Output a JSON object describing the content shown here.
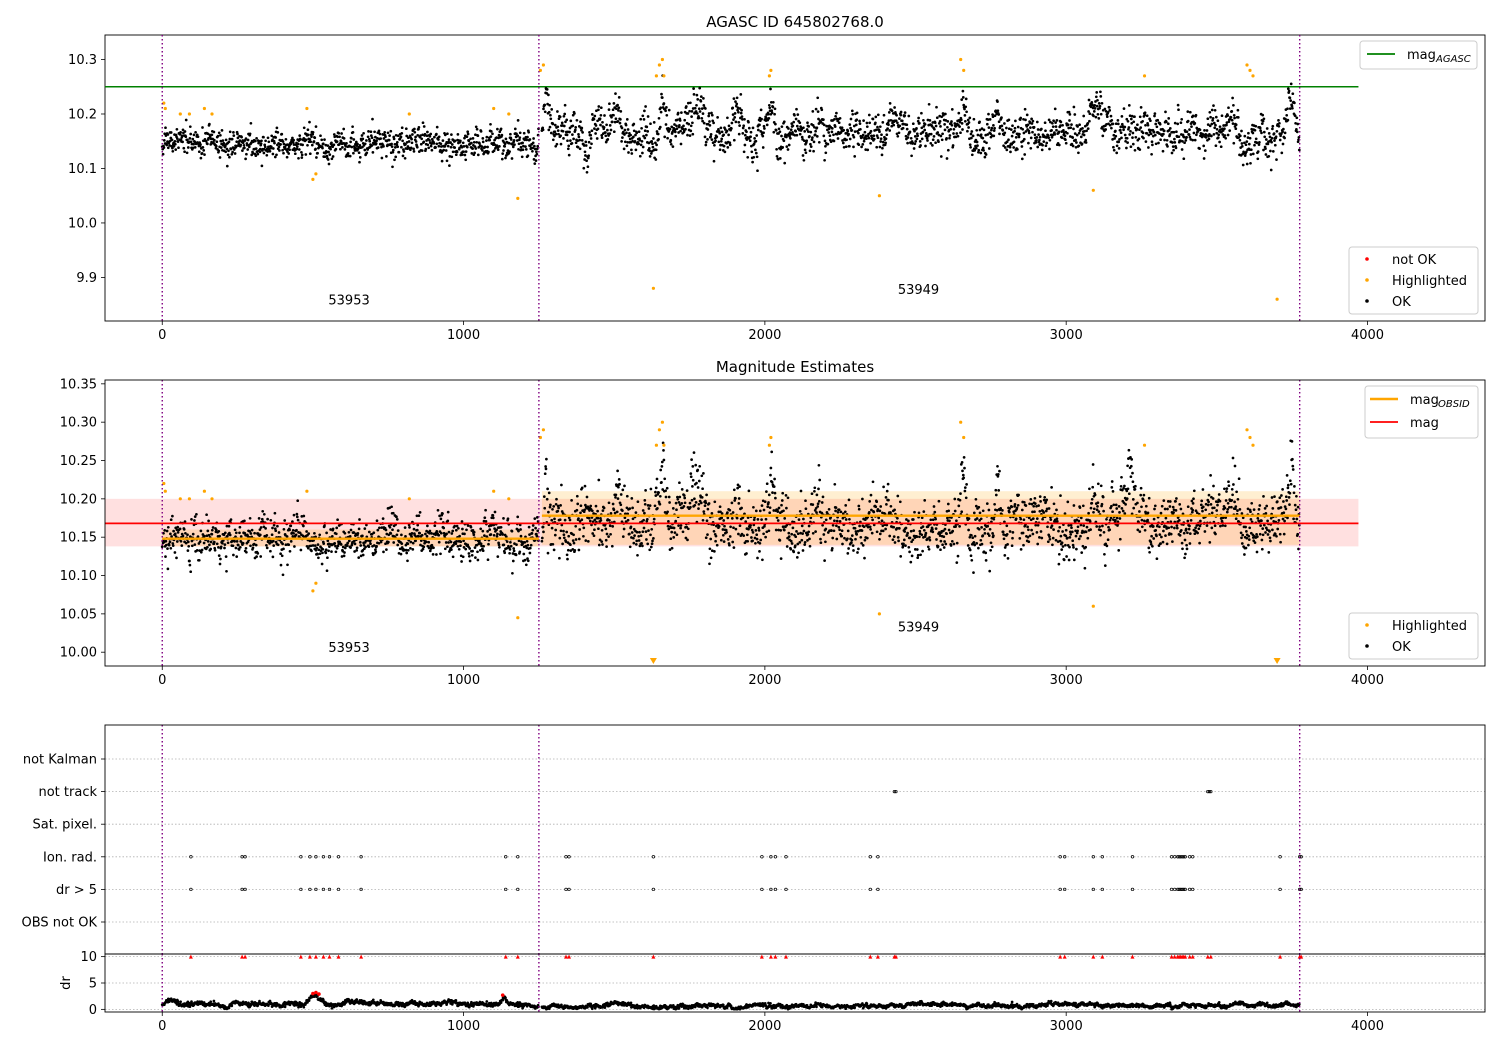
{
  "chart_data": [
    {
      "type": "scatter",
      "title": "AGASC ID 645802768.0",
      "xlim": [
        -190,
        4390
      ],
      "ylim": [
        9.82,
        10.345
      ],
      "x_ticks": [
        0,
        1000,
        2000,
        3000,
        4000
      ],
      "y_ticks": [
        9.9,
        10.0,
        10.1,
        10.2,
        10.3
      ],
      "y_tick_labels": [
        "9.9",
        "10.0",
        "10.1",
        "10.2",
        "10.3"
      ],
      "grid": false,
      "obs_boundaries": [
        0,
        1250,
        3775
      ],
      "obs_labels": [
        {
          "text": "53953",
          "x": 620,
          "y": 9.85
        },
        {
          "text": "53949",
          "x": 2510,
          "y": 9.87
        }
      ],
      "reference_line": {
        "name": "mag_AGASC",
        "y": 10.25,
        "x_range": [
          -190,
          3970
        ],
        "color": "#008000"
      },
      "legend_top": [
        {
          "label": "mag",
          "sub": "AGASC",
          "color": "#008000",
          "kind": "line"
        }
      ],
      "legend_bottom": [
        {
          "label": "not OK",
          "color": "#ff0000",
          "kind": "marker"
        },
        {
          "label": "Highlighted",
          "color": "#ffa500",
          "kind": "marker"
        },
        {
          "label": "OK",
          "color": "#000000",
          "kind": "marker"
        }
      ],
      "segments": [
        {
          "x0": 0,
          "x1": 1250,
          "mean": 10.148,
          "sd": 0.016,
          "drift": 0,
          "excursions": []
        },
        {
          "x0": 1260,
          "x1": 3775,
          "mean": 10.165,
          "sd": 0.022,
          "drift": 0,
          "excursions": [
            [
              1260,
              1290,
              0.09
            ],
            [
              1480,
              1540,
              0.06
            ],
            [
              1640,
              1680,
              0.1
            ],
            [
              1700,
              1830,
              0.055
            ],
            [
              1880,
              1930,
              0.045
            ],
            [
              2000,
              2040,
              0.06
            ],
            [
              2150,
              2200,
              0.045
            ],
            [
              2640,
              2680,
              0.08
            ],
            [
              2750,
              2790,
              0.06
            ],
            [
              3060,
              3130,
              0.05
            ],
            [
              3180,
              3240,
              0.06
            ],
            [
              3520,
              3580,
              0.05
            ],
            [
              3720,
              3775,
              0.08
            ]
          ]
        }
      ],
      "highlighted": [
        [
          5,
          10.22
        ],
        [
          10,
          10.21
        ],
        [
          60,
          10.2
        ],
        [
          90,
          10.2
        ],
        [
          140,
          10.21
        ],
        [
          165,
          10.2
        ],
        [
          480,
          10.21
        ],
        [
          500,
          10.08
        ],
        [
          510,
          10.09
        ],
        [
          820,
          10.2
        ],
        [
          1100,
          10.21
        ],
        [
          1150,
          10.2
        ],
        [
          1180,
          10.045
        ],
        [
          1255,
          10.28
        ],
        [
          1265,
          10.29
        ],
        [
          1630,
          9.88
        ],
        [
          1640,
          10.27
        ],
        [
          1650,
          10.29
        ],
        [
          1660,
          10.3
        ],
        [
          1665,
          10.27
        ],
        [
          2015,
          10.27
        ],
        [
          2020,
          10.28
        ],
        [
          2380,
          10.05
        ],
        [
          2650,
          10.3
        ],
        [
          2660,
          10.28
        ],
        [
          3090,
          10.06
        ],
        [
          3260,
          10.27
        ],
        [
          3600,
          10.29
        ],
        [
          3610,
          10.28
        ],
        [
          3620,
          10.27
        ],
        [
          3700,
          9.86
        ]
      ]
    },
    {
      "type": "scatter",
      "title": "Magnitude Estimates",
      "xlim": [
        -190,
        4390
      ],
      "ylim": [
        9.982,
        10.355
      ],
      "x_ticks": [
        0,
        1000,
        2000,
        3000,
        4000
      ],
      "y_ticks": [
        10.0,
        10.05,
        10.1,
        10.15,
        10.2,
        10.25,
        10.3,
        10.35
      ],
      "y_tick_labels": [
        "10.00",
        "10.05",
        "10.10",
        "10.15",
        "10.20",
        "10.25",
        "10.30",
        "10.35"
      ],
      "grid": false,
      "obs_boundaries": [
        0,
        1250,
        3775
      ],
      "obs_labels": [
        {
          "text": "53953",
          "x": 620,
          "y": 10.0
        },
        {
          "text": "53949",
          "x": 2510,
          "y": 10.027
        }
      ],
      "mag_line": {
        "name": "mag",
        "y": 10.168,
        "band": [
          10.138,
          10.2
        ],
        "x_range": [
          -190,
          3970
        ],
        "color": "#ff0000"
      },
      "mag_obsid": [
        {
          "x0": 0,
          "x1": 1250,
          "y": 10.148,
          "band": [
            10.138,
            10.16
          ]
        },
        {
          "x0": 1260,
          "x1": 3775,
          "y": 10.178,
          "band": [
            10.14,
            10.21
          ]
        }
      ],
      "legend_top": [
        {
          "label": "mag",
          "sub": "OBSID",
          "color": "#ffa500",
          "kind": "line"
        },
        {
          "label": "mag",
          "sub": "",
          "color": "#ff0000",
          "kind": "line"
        }
      ],
      "legend_bottom": [
        {
          "label": "Highlighted",
          "color": "#ffa500",
          "kind": "marker"
        },
        {
          "label": "OK",
          "color": "#000000",
          "kind": "marker"
        }
      ],
      "segments": [
        {
          "x0": 0,
          "x1": 1250,
          "mean": 10.148,
          "sd": 0.016,
          "drift": 0,
          "excursions": []
        },
        {
          "x0": 1260,
          "x1": 3775,
          "mean": 10.165,
          "sd": 0.022,
          "drift": 0,
          "excursions": [
            [
              1260,
              1290,
              0.09
            ],
            [
              1480,
              1540,
              0.06
            ],
            [
              1640,
              1680,
              0.1
            ],
            [
              1700,
              1830,
              0.055
            ],
            [
              1880,
              1930,
              0.045
            ],
            [
              2000,
              2040,
              0.06
            ],
            [
              2150,
              2200,
              0.045
            ],
            [
              2640,
              2680,
              0.08
            ],
            [
              2750,
              2790,
              0.06
            ],
            [
              3060,
              3130,
              0.05
            ],
            [
              3180,
              3240,
              0.06
            ],
            [
              3520,
              3580,
              0.05
            ],
            [
              3720,
              3775,
              0.08
            ]
          ]
        }
      ],
      "highlighted": [
        [
          5,
          10.22
        ],
        [
          10,
          10.21
        ],
        [
          60,
          10.2
        ],
        [
          90,
          10.2
        ],
        [
          140,
          10.21
        ],
        [
          165,
          10.2
        ],
        [
          480,
          10.21
        ],
        [
          500,
          10.08
        ],
        [
          510,
          10.09
        ],
        [
          820,
          10.2
        ],
        [
          1100,
          10.21
        ],
        [
          1150,
          10.2
        ],
        [
          1180,
          10.045
        ],
        [
          1255,
          10.28
        ],
        [
          1265,
          10.29
        ],
        [
          1640,
          10.27
        ],
        [
          1650,
          10.29
        ],
        [
          1660,
          10.3
        ],
        [
          1665,
          10.27
        ],
        [
          2015,
          10.27
        ],
        [
          2020,
          10.28
        ],
        [
          2380,
          10.05
        ],
        [
          2650,
          10.3
        ],
        [
          2660,
          10.28
        ],
        [
          3090,
          10.06
        ],
        [
          3260,
          10.27
        ],
        [
          3600,
          10.29
        ],
        [
          3610,
          10.28
        ],
        [
          3620,
          10.27
        ]
      ],
      "offscale_markers": [
        1630,
        3700
      ]
    },
    {
      "type": "scatter",
      "title": "",
      "xlim": [
        -190,
        4390
      ],
      "categories": [
        "not Kalman",
        "not track",
        "Sat. pixel.",
        "Ion. rad.",
        "dr > 5",
        "OBS not OK"
      ],
      "grid": true,
      "obs_boundaries": [
        0,
        1250,
        3775
      ],
      "flags": {
        "not track": [
          2430,
          2435,
          3470,
          3475,
          3480
        ],
        "Ion. rad.": [
          95,
          265,
          275,
          460,
          490,
          510,
          535,
          555,
          585,
          660,
          1140,
          1180,
          1340,
          1350,
          1630,
          1990,
          2020,
          2035,
          2070,
          2350,
          2375,
          2980,
          2995,
          3090,
          3120,
          3220,
          3350,
          3360,
          3370,
          3375,
          3380,
          3385,
          3390,
          3395,
          3410,
          3420,
          3710,
          3775,
          3780
        ],
        "dr > 5": [
          95,
          265,
          275,
          460,
          490,
          510,
          535,
          555,
          585,
          660,
          1140,
          1180,
          1340,
          1350,
          1630,
          1990,
          2020,
          2035,
          2070,
          2350,
          2375,
          2980,
          2995,
          3090,
          3120,
          3220,
          3350,
          3360,
          3370,
          3375,
          3380,
          3385,
          3390,
          3395,
          3410,
          3420,
          3710,
          3775,
          3780
        ]
      }
    },
    {
      "type": "scatter",
      "title": "",
      "ylabel": "dr",
      "xlim": [
        -190,
        4390
      ],
      "ylim": [
        -0.5,
        10.5
      ],
      "x_ticks": [
        0,
        1000,
        2000,
        3000,
        4000
      ],
      "y_ticks": [
        0,
        5,
        10
      ],
      "y_tick_labels": [
        "0",
        "5",
        "10"
      ],
      "grid": true,
      "obs_boundaries": [
        0,
        1250,
        3775
      ],
      "dr_segments": [
        {
          "x0": 0,
          "x1": 1250,
          "mean": 1.0,
          "sd": 0.35
        },
        {
          "x0": 1260,
          "x1": 3775,
          "mean": 0.65,
          "sd": 0.3
        }
      ],
      "dr_bumps": [
        [
          470,
          540,
          2.8
        ],
        [
          1120,
          1150,
          2.5
        ]
      ],
      "clipped_markers": [
        95,
        265,
        275,
        460,
        490,
        510,
        535,
        555,
        585,
        660,
        1140,
        1180,
        1340,
        1350,
        1630,
        1990,
        2020,
        2035,
        2070,
        2350,
        2375,
        2430,
        2435,
        2980,
        2995,
        3090,
        3120,
        3220,
        3350,
        3360,
        3370,
        3375,
        3380,
        3385,
        3390,
        3395,
        3410,
        3420,
        3470,
        3480,
        3710,
        3775,
        3780
      ],
      "red_points": [
        [
          500,
          3.0
        ],
        [
          510,
          3.2
        ],
        [
          520,
          2.9
        ],
        [
          1130,
          2.7
        ]
      ]
    }
  ]
}
